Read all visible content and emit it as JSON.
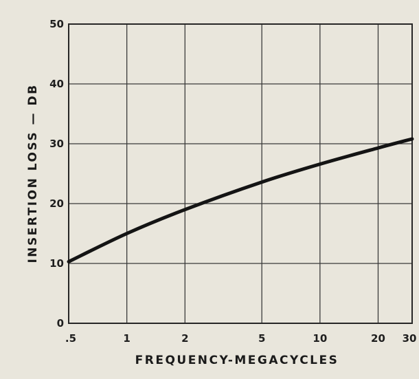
{
  "chart_data": {
    "type": "line",
    "title": "",
    "xlabel": "FREQUENCY-MEGACYCLES",
    "ylabel": "INSERTION LOSS — DB",
    "x_scale": "log",
    "xlim": [
      0.5,
      30
    ],
    "ylim": [
      0,
      50
    ],
    "grid": true,
    "x_ticks": [
      0.5,
      1,
      2,
      5,
      10,
      20,
      30
    ],
    "x_tick_labels": [
      ".5",
      "1",
      "2",
      "5",
      "10",
      "20",
      "30"
    ],
    "y_ticks": [
      0,
      10,
      20,
      30,
      40,
      50
    ],
    "y_tick_labels": [
      "0",
      "10",
      "20",
      "30",
      "40",
      "50"
    ],
    "series": [
      {
        "name": "",
        "x": [
          0.5,
          1,
          2,
          5,
          10,
          20,
          30
        ],
        "y": [
          10.3,
          15,
          19,
          23.6,
          26.6,
          29.3,
          30.8
        ]
      }
    ],
    "colors": {
      "line": "#141414",
      "grid": "#3a3a3a",
      "background": "#e9e6dc"
    }
  }
}
